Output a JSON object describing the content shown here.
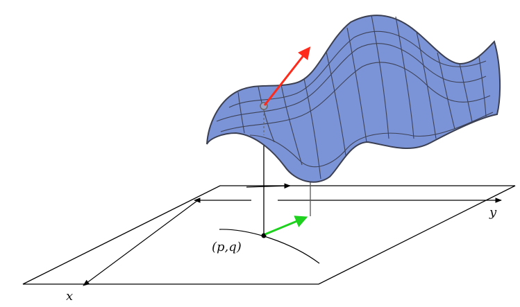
{
  "labels": {
    "point": "(p,q)",
    "x_axis": "x",
    "y_axis": "y"
  },
  "colors": {
    "surface_fill": "#7b93d7",
    "surface_stroke": "#3b3f52",
    "mesh": "#3d4256",
    "gradient_arrow": "#ff2a1a",
    "tangent_arrow": "#1fd11f",
    "axis": "#000000"
  }
}
